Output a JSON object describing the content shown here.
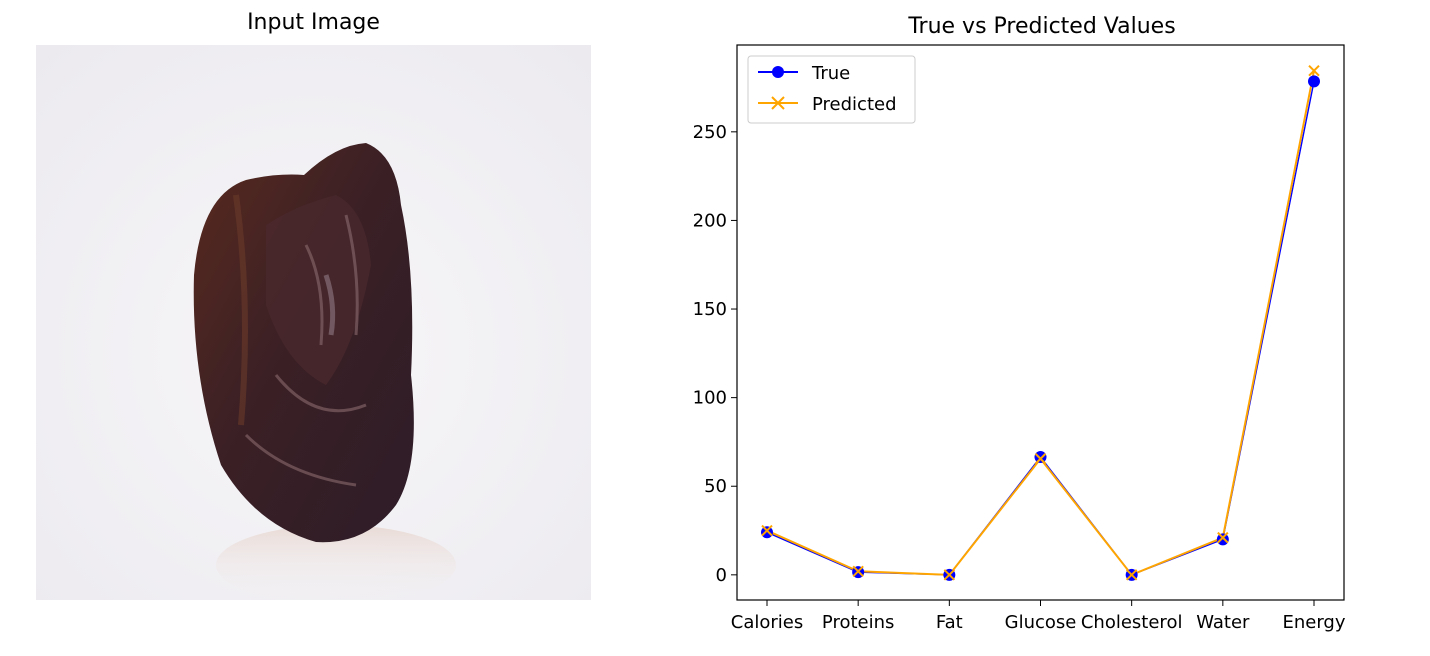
{
  "input_panel": {
    "title": "Input Image"
  },
  "chart_data": {
    "type": "line",
    "title": "True vs Predicted Values",
    "xlabel": "",
    "ylabel": "",
    "categories": [
      "Calories",
      "Proteins",
      "Fat",
      "Glucose",
      "Cholesterol",
      "Water",
      "Energy"
    ],
    "series": [
      {
        "name": "True",
        "values": [
          24,
          1.5,
          0,
          66.5,
          0,
          20,
          278.5
        ],
        "color": "#0000ff",
        "marker": "circle"
      },
      {
        "name": "Predicted",
        "values": [
          25,
          2,
          0,
          65.5,
          0,
          21,
          284.5
        ],
        "color": "#ffa500",
        "marker": "x"
      }
    ],
    "ylim": [
      -14.2,
      299
    ],
    "yticks": [
      0,
      50,
      100,
      150,
      200,
      250
    ],
    "grid": false,
    "legend": "top-left"
  }
}
